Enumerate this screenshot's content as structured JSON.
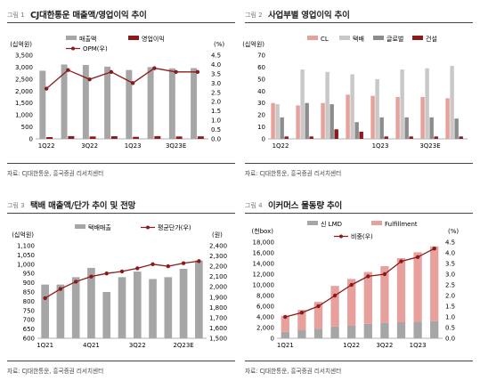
{
  "panels": [
    {
      "fig_label": "그림 1",
      "title": "CJ대한통운 매출액/영업이익 추이",
      "source": "자료: CJ대한통운, 흥국증권  리서치센터",
      "chart_data": {
        "type": "bar",
        "y_unit_left": "(십억원)",
        "y_unit_right": "(%)",
        "ylim": [
          0,
          3500
        ],
        "yticks": [
          "0",
          "500",
          "1,000",
          "1,500",
          "2,000",
          "2,500",
          "3,000",
          "3,500"
        ],
        "y2lim": [
          0,
          4.5
        ],
        "y2ticks": [
          "0.0",
          "0.5",
          "1.0",
          "1.5",
          "2.0",
          "2.5",
          "3.0",
          "3.5",
          "4.0",
          "4.5"
        ],
        "x_labels": [
          "1Q22",
          "3Q22",
          "1Q23",
          "3Q23E"
        ],
        "series": [
          {
            "name": "매출액",
            "kind": "bar",
            "color": "#a6a6a6",
            "values": [
              2850,
              3110,
              3090,
              3020,
              2880,
              3000,
              2950,
              2960
            ]
          },
          {
            "name": "영업이익",
            "kind": "bar",
            "color": "#8b1a1a",
            "values": [
              75,
              115,
              100,
              110,
              85,
              115,
              100,
              105
            ]
          },
          {
            "name": "OPM(우)",
            "kind": "line",
            "color": "#8b1a1a",
            "values": [
              2.7,
              3.7,
              3.2,
              3.6,
              3.0,
              3.8,
              3.6,
              3.6
            ]
          }
        ]
      }
    },
    {
      "fig_label": "그림 2",
      "title": "사업부별 영업이익 추이",
      "source": "자료: CJ대한통운, 흥국증권  리서치센터",
      "chart_data": {
        "type": "bar",
        "y_unit_left": "(십억원)",
        "ylim": [
          0,
          70
        ],
        "yticks": [
          "0",
          "10",
          "20",
          "30",
          "40",
          "50",
          "60",
          "70"
        ],
        "x_labels": [
          "1Q22",
          "1Q23",
          "3Q23E"
        ],
        "series": [
          {
            "name": "CL",
            "color": "#e8a09d",
            "values": [
              30,
              28,
              30,
              37,
              36,
              35,
              35,
              34
            ]
          },
          {
            "name": "택배",
            "color": "#c8c8c8",
            "values": [
              29,
              58,
              56,
              54,
              50,
              58,
              59,
              61
            ]
          },
          {
            "name": "글로벌",
            "color": "#8c8c8c",
            "values": [
              18,
              30,
              29,
              14,
              18,
              18,
              18,
              17
            ]
          },
          {
            "name": "건설",
            "color": "#8b1a1a",
            "values": [
              2,
              2,
              8,
              6,
              2,
              2,
              2,
              2
            ]
          }
        ]
      }
    },
    {
      "fig_label": "그림 3",
      "title": "택배 매출액/단가 추이 및 전망",
      "source": "자료: CJ대한통운, 흥국증권  리서치센터",
      "chart_data": {
        "type": "bar",
        "y_unit_left": "(십억원)",
        "y_unit_right": "(원)",
        "ylim": [
          600,
          1100
        ],
        "yticks": [
          "600",
          "650",
          "700",
          "750",
          "800",
          "850",
          "900",
          "950",
          "1,000",
          "1,050",
          "1,100"
        ],
        "y2lim": [
          1500,
          2400
        ],
        "y2ticks": [
          "1,500",
          "1,600",
          "1,700",
          "1,800",
          "1,900",
          "2,000",
          "2,100",
          "2,200",
          "2,300",
          "2,400"
        ],
        "x_labels": [
          "1Q21",
          "4Q21",
          "3Q22",
          "2Q23E"
        ],
        "series": [
          {
            "name": "택배매출",
            "kind": "bar",
            "color": "#a6a6a6",
            "values": [
              890,
              890,
              930,
              980,
              850,
              930,
              960,
              920,
              930,
              975,
              1020
            ]
          },
          {
            "name": "평균단가(우)",
            "kind": "line",
            "color": "#8b1a1a",
            "values": [
              1890,
              1980,
              2050,
              2100,
              2130,
              2150,
              2180,
              2220,
              2200,
              2230,
              2250
            ]
          }
        ]
      }
    },
    {
      "fig_label": "그림 4",
      "title": "이커머스 물동량 추이",
      "source": "자료: CJ대한통운, 흥국증권  리서치센터",
      "chart_data": {
        "type": "bar",
        "y_unit_left": "(천box)",
        "y_unit_right": "(%)",
        "ylim": [
          0,
          18000
        ],
        "yticks": [
          "0",
          "2,000",
          "4,000",
          "6,000",
          "8,000",
          "10,000",
          "12,000",
          "14,000",
          "16,000",
          "18,000"
        ],
        "y2lim": [
          0,
          4.5
        ],
        "y2ticks": [
          "0.0",
          "0.5",
          "1.0",
          "1.5",
          "2.0",
          "2.5",
          "3.0",
          "3.5",
          "4.0",
          "4.5"
        ],
        "x_labels": [
          "1Q21",
          "1Q22",
          "3Q22",
          "1Q23"
        ],
        "series": [
          {
            "name": "신 LMD",
            "kind": "bar",
            "color": "#a6a6a6",
            "values": [
              1200,
              1500,
              1800,
              2200,
              2400,
              2700,
              2900,
              3000,
              3100,
              3200
            ]
          },
          {
            "name": "Fulfillment",
            "kind": "bar",
            "color": "#e8a09d",
            "values": [
              3000,
              3800,
              5000,
              7600,
              8700,
              9700,
              10600,
              12000,
              13000,
              14000
            ]
          },
          {
            "name": "비중(우)",
            "kind": "line",
            "color": "#8b1a1a",
            "values": [
              1.0,
              1.2,
              1.5,
              2.0,
              2.5,
              2.9,
              3.0,
              3.6,
              3.8,
              4.2
            ]
          }
        ]
      }
    }
  ]
}
